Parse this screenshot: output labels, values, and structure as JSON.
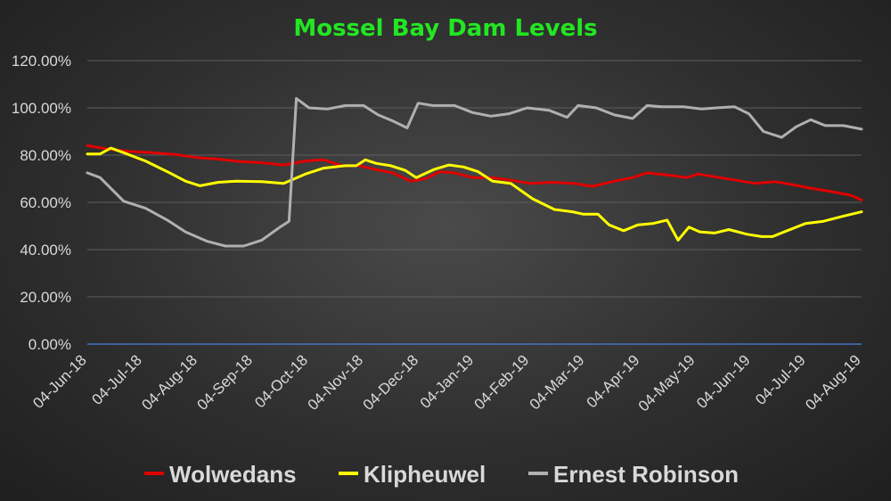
{
  "chart_data": {
    "type": "line",
    "title": "Mossel Bay Dam Levels",
    "xlabel": "",
    "ylabel": "",
    "ylim": [
      0,
      120
    ],
    "y_ticks": [
      "0.00%",
      "20.00%",
      "40.00%",
      "60.00%",
      "80.00%",
      "100.00%",
      "120.00%"
    ],
    "x_ticks": [
      "04-Jun-18",
      "04-Jul-18",
      "04-Aug-18",
      "04-Sep-18",
      "04-Oct-18",
      "04-Nov-18",
      "04-Dec-18",
      "04-Jan-19",
      "04-Feb-19",
      "04-Mar-19",
      "04-Apr-19",
      "04-May-19",
      "04-Jun-19",
      "04-Jul-19",
      "04-Aug-19"
    ],
    "x_range": [
      "2018-06-04",
      "2019-08-04"
    ],
    "grid": true,
    "legend": "bottom",
    "series": [
      {
        "name": "Wolwedans",
        "color": "#e00000",
        "points": [
          [
            "2018-06-04",
            84
          ],
          [
            "2018-06-16",
            82.5
          ],
          [
            "2018-06-28",
            81.5
          ],
          [
            "2018-07-10",
            81
          ],
          [
            "2018-07-22",
            80.3
          ],
          [
            "2018-08-03",
            79
          ],
          [
            "2018-08-15",
            78.3
          ],
          [
            "2018-08-27",
            77.3
          ],
          [
            "2018-09-08",
            76.8
          ],
          [
            "2018-09-20",
            75.8
          ],
          [
            "2018-10-02",
            77.5
          ],
          [
            "2018-10-12",
            78
          ],
          [
            "2018-10-22",
            75.5
          ],
          [
            "2018-11-01",
            75.5
          ],
          [
            "2018-11-09",
            74
          ],
          [
            "2018-11-19",
            72.5
          ],
          [
            "2018-11-29",
            69
          ],
          [
            "2018-12-07",
            70
          ],
          [
            "2018-12-15",
            73
          ],
          [
            "2018-12-23",
            72.5
          ],
          [
            "2019-01-02",
            70.5
          ],
          [
            "2019-01-12",
            70.5
          ],
          [
            "2019-01-22",
            69.5
          ],
          [
            "2019-02-03",
            68
          ],
          [
            "2019-02-15",
            68.5
          ],
          [
            "2019-02-27",
            68
          ],
          [
            "2019-03-09",
            66.8
          ],
          [
            "2019-03-21",
            69
          ],
          [
            "2019-03-31",
            70.5
          ],
          [
            "2019-04-08",
            72.5
          ],
          [
            "2019-04-20",
            71.5
          ],
          [
            "2019-04-30",
            70.5
          ],
          [
            "2019-05-06",
            72
          ],
          [
            "2019-05-18",
            70.5
          ],
          [
            "2019-05-30",
            69
          ],
          [
            "2019-06-07",
            68
          ],
          [
            "2019-06-17",
            68.8
          ],
          [
            "2019-06-27",
            67.5
          ],
          [
            "2019-07-07",
            66
          ],
          [
            "2019-07-19",
            64.5
          ],
          [
            "2019-07-29",
            63
          ],
          [
            "2019-08-04",
            61
          ]
        ]
      },
      {
        "name": "Klipheuwel",
        "color": "#ffff00",
        "points": [
          [
            "2018-06-04",
            80.5
          ],
          [
            "2018-06-11",
            80.5
          ],
          [
            "2018-06-17",
            83
          ],
          [
            "2018-06-24",
            81
          ],
          [
            "2018-07-06",
            77.5
          ],
          [
            "2018-07-18",
            73
          ],
          [
            "2018-07-28",
            69
          ],
          [
            "2018-08-05",
            67
          ],
          [
            "2018-08-15",
            68.5
          ],
          [
            "2018-08-25",
            69
          ],
          [
            "2018-09-08",
            68.8
          ],
          [
            "2018-09-20",
            68
          ],
          [
            "2018-10-02",
            72
          ],
          [
            "2018-10-12",
            74.5
          ],
          [
            "2018-10-24",
            75.5
          ],
          [
            "2018-10-30",
            75.5
          ],
          [
            "2018-11-04",
            78
          ],
          [
            "2018-11-10",
            76.5
          ],
          [
            "2018-11-18",
            75.5
          ],
          [
            "2018-11-26",
            73.5
          ],
          [
            "2018-12-02",
            70.5
          ],
          [
            "2018-12-12",
            74
          ],
          [
            "2018-12-20",
            75.8
          ],
          [
            "2018-12-28",
            75
          ],
          [
            "2019-01-05",
            73
          ],
          [
            "2019-01-13",
            69
          ],
          [
            "2019-01-23",
            68
          ],
          [
            "2019-02-04",
            61.5
          ],
          [
            "2019-02-16",
            57
          ],
          [
            "2019-02-26",
            56
          ],
          [
            "2019-03-04",
            55
          ],
          [
            "2019-03-12",
            55
          ],
          [
            "2019-03-18",
            50.5
          ],
          [
            "2019-03-26",
            48
          ],
          [
            "2019-04-03",
            50.5
          ],
          [
            "2019-04-11",
            51
          ],
          [
            "2019-04-19",
            52.5
          ],
          [
            "2019-04-25",
            44
          ],
          [
            "2019-05-01",
            49.5
          ],
          [
            "2019-05-07",
            47.5
          ],
          [
            "2019-05-15",
            47
          ],
          [
            "2019-05-23",
            48.5
          ],
          [
            "2019-06-02",
            46.5
          ],
          [
            "2019-06-10",
            45.5
          ],
          [
            "2019-06-16",
            45.5
          ],
          [
            "2019-06-24",
            48
          ],
          [
            "2019-07-04",
            51
          ],
          [
            "2019-07-14",
            52
          ],
          [
            "2019-07-24",
            54
          ],
          [
            "2019-08-04",
            56
          ]
        ]
      },
      {
        "name": "Ernest Robinson",
        "color": "#b0b0b0",
        "points": [
          [
            "2018-06-04",
            72.5
          ],
          [
            "2018-06-11",
            70.5
          ],
          [
            "2018-06-24",
            60.5
          ],
          [
            "2018-07-06",
            57.5
          ],
          [
            "2018-07-18",
            52.5
          ],
          [
            "2018-07-28",
            47.5
          ],
          [
            "2018-08-09",
            43.5
          ],
          [
            "2018-08-19",
            41.5
          ],
          [
            "2018-08-29",
            41.5
          ],
          [
            "2018-09-08",
            44
          ],
          [
            "2018-09-18",
            49.5
          ],
          [
            "2018-09-23",
            52
          ],
          [
            "2018-09-27",
            104
          ],
          [
            "2018-10-04",
            100
          ],
          [
            "2018-10-14",
            99.5
          ],
          [
            "2018-10-24",
            101
          ],
          [
            "2018-11-03",
            101
          ],
          [
            "2018-11-11",
            97
          ],
          [
            "2018-11-19",
            94.5
          ],
          [
            "2018-11-27",
            91.5
          ],
          [
            "2018-12-03",
            102
          ],
          [
            "2018-12-11",
            101
          ],
          [
            "2018-12-23",
            101
          ],
          [
            "2019-01-02",
            98
          ],
          [
            "2019-01-12",
            96.5
          ],
          [
            "2019-01-22",
            97.5
          ],
          [
            "2019-02-01",
            100
          ],
          [
            "2019-02-13",
            99
          ],
          [
            "2019-02-23",
            96
          ],
          [
            "2019-03-01",
            101
          ],
          [
            "2019-03-11",
            100
          ],
          [
            "2019-03-21",
            97
          ],
          [
            "2019-03-31",
            95.5
          ],
          [
            "2019-04-08",
            101
          ],
          [
            "2019-04-16",
            100.5
          ],
          [
            "2019-04-28",
            100.5
          ],
          [
            "2019-05-08",
            99.5
          ],
          [
            "2019-05-16",
            100
          ],
          [
            "2019-05-26",
            100.5
          ],
          [
            "2019-06-03",
            97.5
          ],
          [
            "2019-06-11",
            90
          ],
          [
            "2019-06-21",
            87.5
          ],
          [
            "2019-06-29",
            92
          ],
          [
            "2019-07-07",
            95
          ],
          [
            "2019-07-15",
            92.5
          ],
          [
            "2019-07-25",
            92.5
          ],
          [
            "2019-08-04",
            91
          ]
        ]
      }
    ]
  },
  "colors": {
    "title": "#22e622",
    "gridline": "#5e5e5e",
    "zero_line": "#4472c4",
    "text": "#d9d9d9"
  }
}
